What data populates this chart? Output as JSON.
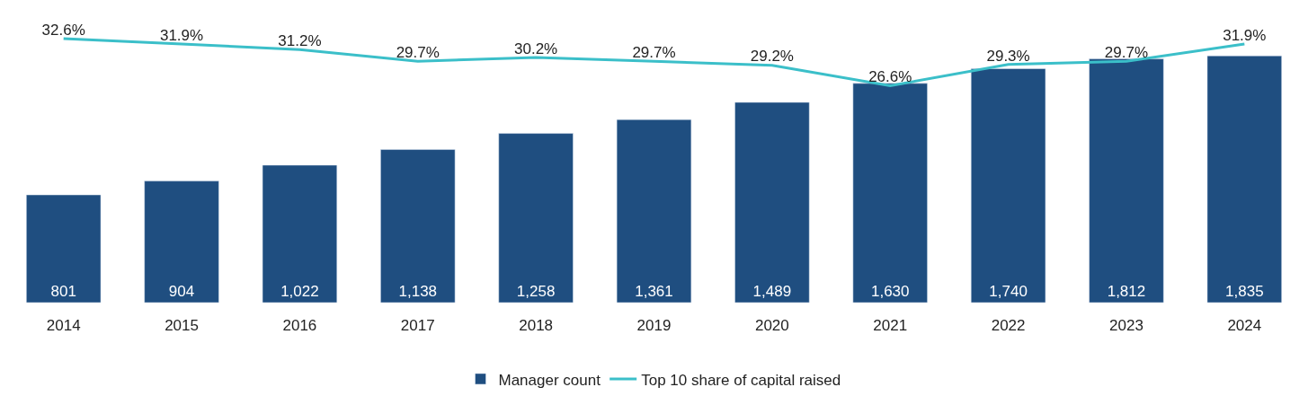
{
  "chart_data": {
    "type": "bar",
    "categories": [
      "2014",
      "2015",
      "2016",
      "2017",
      "2018",
      "2019",
      "2020",
      "2021",
      "2022",
      "2023",
      "2024"
    ],
    "series": [
      {
        "name": "Manager count",
        "color": "#1f4e80",
        "values": [
          801,
          904,
          1022,
          1138,
          1258,
          1361,
          1489,
          1630,
          1740,
          1812,
          1835
        ],
        "value_labels": [
          "801",
          "904",
          "1,022",
          "1,138",
          "1,258",
          "1,361",
          "1,489",
          "1,630",
          "1,740",
          "1,812",
          "1,835"
        ]
      },
      {
        "name": "Top 10 share of capital raised",
        "type": "line",
        "axis": "y2",
        "color": "#3bbfc9",
        "values": [
          32.6,
          31.9,
          31.2,
          29.7,
          30.2,
          29.7,
          29.2,
          26.6,
          29.3,
          29.7,
          31.9
        ],
        "value_labels": [
          "32.6%",
          "31.9%",
          "31.2%",
          "29.7%",
          "30.2%",
          "29.7%",
          "29.2%",
          "26.6%",
          "29.3%",
          "29.7%",
          "31.9%"
        ]
      }
    ],
    "ylim": [
      0,
      2250
    ],
    "y2lim": [
      -1,
      37.5
    ],
    "tick_labels": "x",
    "legend": "bottom",
    "marker": "none",
    "line_style": "solid"
  }
}
